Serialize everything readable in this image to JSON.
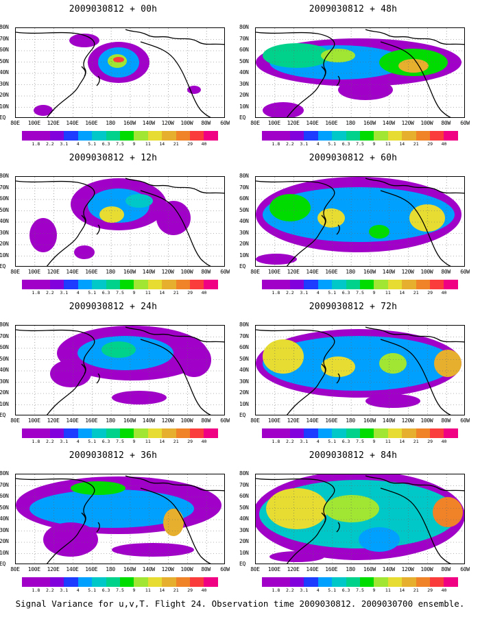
{
  "panels": [
    {
      "title": "2009030812 + 00h"
    },
    {
      "title": "2009030812 + 48h"
    },
    {
      "title": "2009030812 + 12h"
    },
    {
      "title": "2009030812 + 60h"
    },
    {
      "title": "2009030812 + 24h"
    },
    {
      "title": "2009030812 + 72h"
    },
    {
      "title": "2009030812 + 36h"
    },
    {
      "title": "2009030812 + 84h"
    }
  ],
  "y_labels": [
    "80N",
    "70N",
    "60N",
    "50N",
    "40N",
    "30N",
    "20N",
    "10N",
    "EQ"
  ],
  "x_labels": [
    "80E",
    "100E",
    "120E",
    "140E",
    "160E",
    "180",
    "160W",
    "140W",
    "120W",
    "100W",
    "80W",
    "60W"
  ],
  "colorbar": {
    "labels": [
      "1.8",
      "2.2",
      "3.1",
      "4",
      "5.1",
      "6.3",
      "7.5",
      "9",
      "11",
      "14",
      "21",
      "29",
      "40"
    ],
    "colors": [
      "#a000c8",
      "#8200dc",
      "#1e3cff",
      "#00a0ff",
      "#00c8c8",
      "#00d28c",
      "#00dc00",
      "#a0e632",
      "#e6dc32",
      "#e6af2d",
      "#f08228",
      "#fa3c3c",
      "#f00082"
    ]
  },
  "caption": "Signal Variance for u,v,T. Flight 24. Observation time 2009030812. 2009030700 ensemble."
}
